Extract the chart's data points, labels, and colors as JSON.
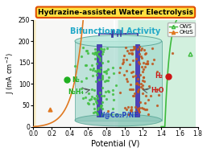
{
  "title": "Hydrazine-assisted Water Electrolysis",
  "subtitle": "Bifunctional Activity",
  "xlabel": "Potential (V)",
  "ylabel": "J (mA cm$^{-2}$)",
  "xlim": [
    0.0,
    1.8
  ],
  "ylim": [
    0,
    250
  ],
  "xticks": [
    0.0,
    0.2,
    0.4,
    0.6,
    0.8,
    1.0,
    1.2,
    1.4,
    1.6,
    1.8
  ],
  "yticks": [
    0,
    50,
    100,
    150,
    200,
    250
  ],
  "bg_left_color": "#f8eecc",
  "bg_right_color": "#d8f0e4",
  "ows_color": "#3dba3d",
  "ohzs_color": "#e07820",
  "legend_labels": [
    "OWS",
    "OHzS"
  ],
  "catalyst_label": "W@Co₂P/NF",
  "n2_label": "N₂",
  "n2h4_label": "N₂H₄",
  "h2_label": "H₂",
  "h2o_label": "H₂O",
  "title_bg": "#ffe040",
  "title_border": "#e05000",
  "circuit_color": "#3535a0"
}
